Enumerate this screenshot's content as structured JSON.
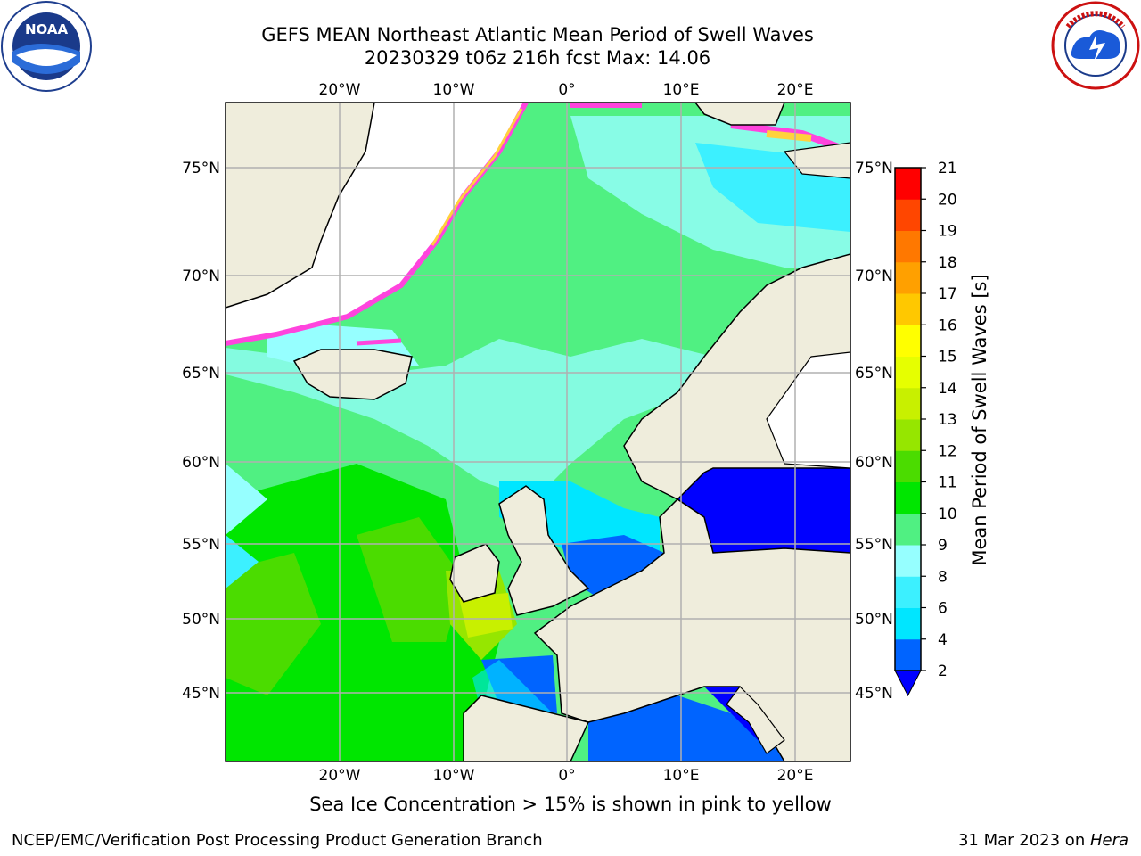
{
  "header": {
    "title_line1": "GEFS MEAN Northeast Atlantic Mean Period of Swell Waves",
    "title_line2": "20230329 t06z 216h fcst   Max: 14.06"
  },
  "logos": {
    "left": {
      "name": "noaa-logo",
      "text": "NOAA",
      "ring_text": "NATIONAL OCEANIC AND ATMOSPHERIC ADMINISTRATION · U.S. DEPARTMENT OF COMMERCE"
    },
    "right": {
      "name": "nws-logo",
      "ring_text": "NATIONAL WEATHER SERVICE"
    }
  },
  "map": {
    "lon_range": [
      -30,
      25
    ],
    "lat_range": [
      41,
      78
    ],
    "lon_ticks": [
      "20°W",
      "10°W",
      "0°",
      "10°E",
      "20°E"
    ],
    "lat_ticks": [
      "45°N",
      "50°N",
      "55°N",
      "60°N",
      "65°N",
      "70°N",
      "75°N"
    ],
    "grid": true,
    "colors": {
      "land": "#efeddc",
      "ice_free_white": "#ffffff"
    }
  },
  "colorbar": {
    "label": "Mean Period of Swell Waves [s]",
    "ticks": [
      "2",
      "4",
      "6",
      "8",
      "9",
      "10",
      "11",
      "12",
      "13",
      "14",
      "15",
      "16",
      "17",
      "18",
      "19",
      "20",
      "21"
    ],
    "colors": [
      "#0064ff",
      "#00e6ff",
      "#3cf0ff",
      "#96ffff",
      "#50f082",
      "#00e600",
      "#4bdc00",
      "#96e600",
      "#c8f000",
      "#e6ff00",
      "#ffff00",
      "#ffc800",
      "#ffa000",
      "#ff7800",
      "#ff4600",
      "#ff0000"
    ],
    "under_color": "#0000ff",
    "extend": "min"
  },
  "note": "Sea Ice Concentration > 15% is shown in pink to yellow",
  "footer": {
    "left": "NCEP/EMC/Verification Post Processing Product Generation Branch",
    "right_prefix": "31 Mar 2023 on ",
    "right_host": "Hera"
  }
}
